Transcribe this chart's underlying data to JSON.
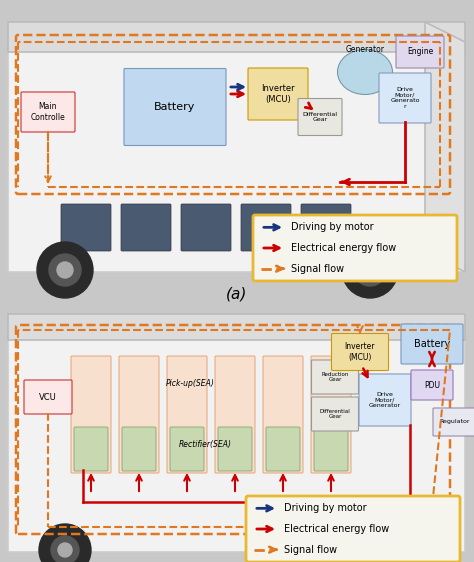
{
  "bg_color": "#c8c8c8",
  "legend": {
    "items": [
      {
        "label": "Driving by motor",
        "color": "#1a3580",
        "style": "solid"
      },
      {
        "label": "Electrical energy flow",
        "color": "#cc0000",
        "style": "solid"
      },
      {
        "label": "Signal flow",
        "color": "#e07820",
        "style": "dashed"
      }
    ],
    "border_color": "#e8b830"
  },
  "bus1_components": [
    {
      "id": "main_ctrl",
      "label": "Main\nControlle",
      "fc": "#fde8e8",
      "ec": "#cc3333",
      "fs": 5.5
    },
    {
      "id": "battery",
      "label": "Battery",
      "fc": "#c0d8f0",
      "ec": "#7799bb",
      "fs": 8
    },
    {
      "id": "inverter",
      "label": "Inverter\n(MCU)",
      "fc": "#f0dda0",
      "ec": "#cc9900",
      "fs": 5.5
    },
    {
      "id": "diff_gear",
      "label": "Differential\nGear",
      "fc": "#e8e8e0",
      "ec": "#999999",
      "fs": 4.5
    },
    {
      "id": "generator",
      "label": "Generator",
      "fc": "#b8d8e8",
      "ec": "#7799aa",
      "fs": 5.5
    },
    {
      "id": "engine",
      "label": "Engine",
      "fc": "#e0d8ec",
      "ec": "#9988aa",
      "fs": 5.5
    },
    {
      "id": "drive_mg",
      "label": "Drive\nMotor/\nGenerato\nr",
      "fc": "#d8e8f8",
      "ec": "#8899bb",
      "fs": 4.5
    }
  ],
  "bus2_components": [
    {
      "id": "vcu",
      "label": "VCU",
      "fc": "#fde8e8",
      "ec": "#cc3333",
      "fs": 5.5
    },
    {
      "id": "pickup",
      "label": "Pick-up(SEA)",
      "fc": "#f8ddc8",
      "ec": "#dd9966",
      "fs": 5
    },
    {
      "id": "rectifier",
      "label": "Rectifier(SEA)",
      "fc": "#d8e8c8",
      "ec": "#779966",
      "fs": 5
    },
    {
      "id": "diff_gear",
      "label": "Differential\nGear",
      "fc": "#e8e8e0",
      "ec": "#999999",
      "fs": 4
    },
    {
      "id": "red_gear",
      "label": "Reduction\nGear",
      "fc": "#e8e8e0",
      "ec": "#999999",
      "fs": 4
    },
    {
      "id": "drive_mg",
      "label": "Drive\nMotor/\nGenerator",
      "fc": "#d8e8f8",
      "ec": "#8899bb",
      "fs": 4
    },
    {
      "id": "inverter",
      "label": "Inverter\n(MCU)",
      "fc": "#f0dda0",
      "ec": "#cc9900",
      "fs": 5
    },
    {
      "id": "battery",
      "label": "Battery",
      "fc": "#c0d8f0",
      "ec": "#7799bb",
      "fs": 6.5
    },
    {
      "id": "pdu",
      "label": "PDU",
      "fc": "#e0d8f0",
      "ec": "#9977bb",
      "fs": 5
    },
    {
      "id": "regulator",
      "label": "Regulator",
      "fc": "#e8e8f0",
      "ec": "#9988aa",
      "fs": 4.5
    }
  ]
}
